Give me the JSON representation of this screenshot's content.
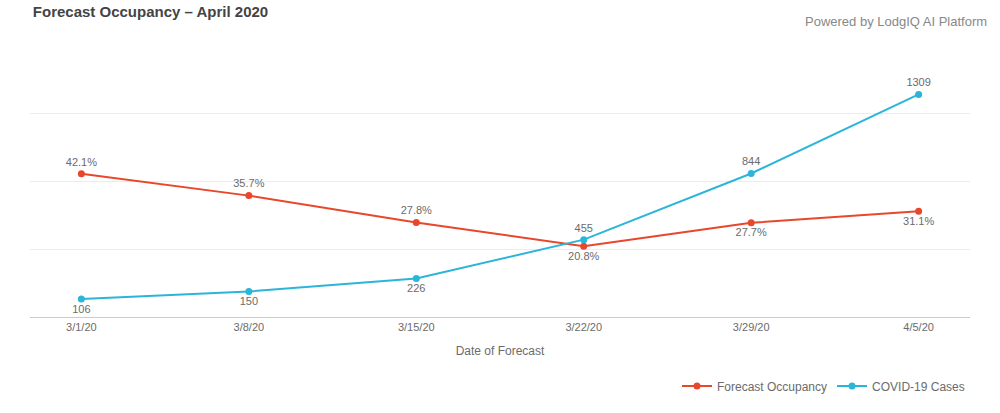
{
  "chart_data": {
    "type": "line",
    "title": "Forecast Occupancy – April 2020",
    "subtitle": "Powered by LodgIQ AI Platform",
    "x_label": "Date of Forecast",
    "categories": [
      "3/1/20",
      "3/8/20",
      "3/15/20",
      "3/22/20",
      "3/29/20",
      "4/5/20"
    ],
    "series": [
      {
        "name": "Forecast Occupancy",
        "color": "#e8472b",
        "marker": "circle",
        "values": [
          42.1,
          35.7,
          27.8,
          20.8,
          27.7,
          31.1
        ],
        "value_labels": [
          "42.1%",
          "35.7%",
          "27.8%",
          "20.8%",
          "27.7%",
          "31.1%"
        ]
      },
      {
        "name": "COVID-19 Cases",
        "color": "#2bb5d8",
        "marker": "circle",
        "axis": "y2",
        "values": [
          106,
          150,
          226,
          455,
          844,
          1309
        ]
      }
    ],
    "ylim": [
      0,
      80
    ],
    "yticks": [
      0,
      20,
      40,
      60,
      80
    ],
    "y2lim": [
      0,
      1600
    ],
    "y2ticks": [
      0,
      400,
      800,
      1200,
      1600
    ],
    "grid": true,
    "legend": "lower right",
    "data_labels": true,
    "tick_labels": "x"
  }
}
